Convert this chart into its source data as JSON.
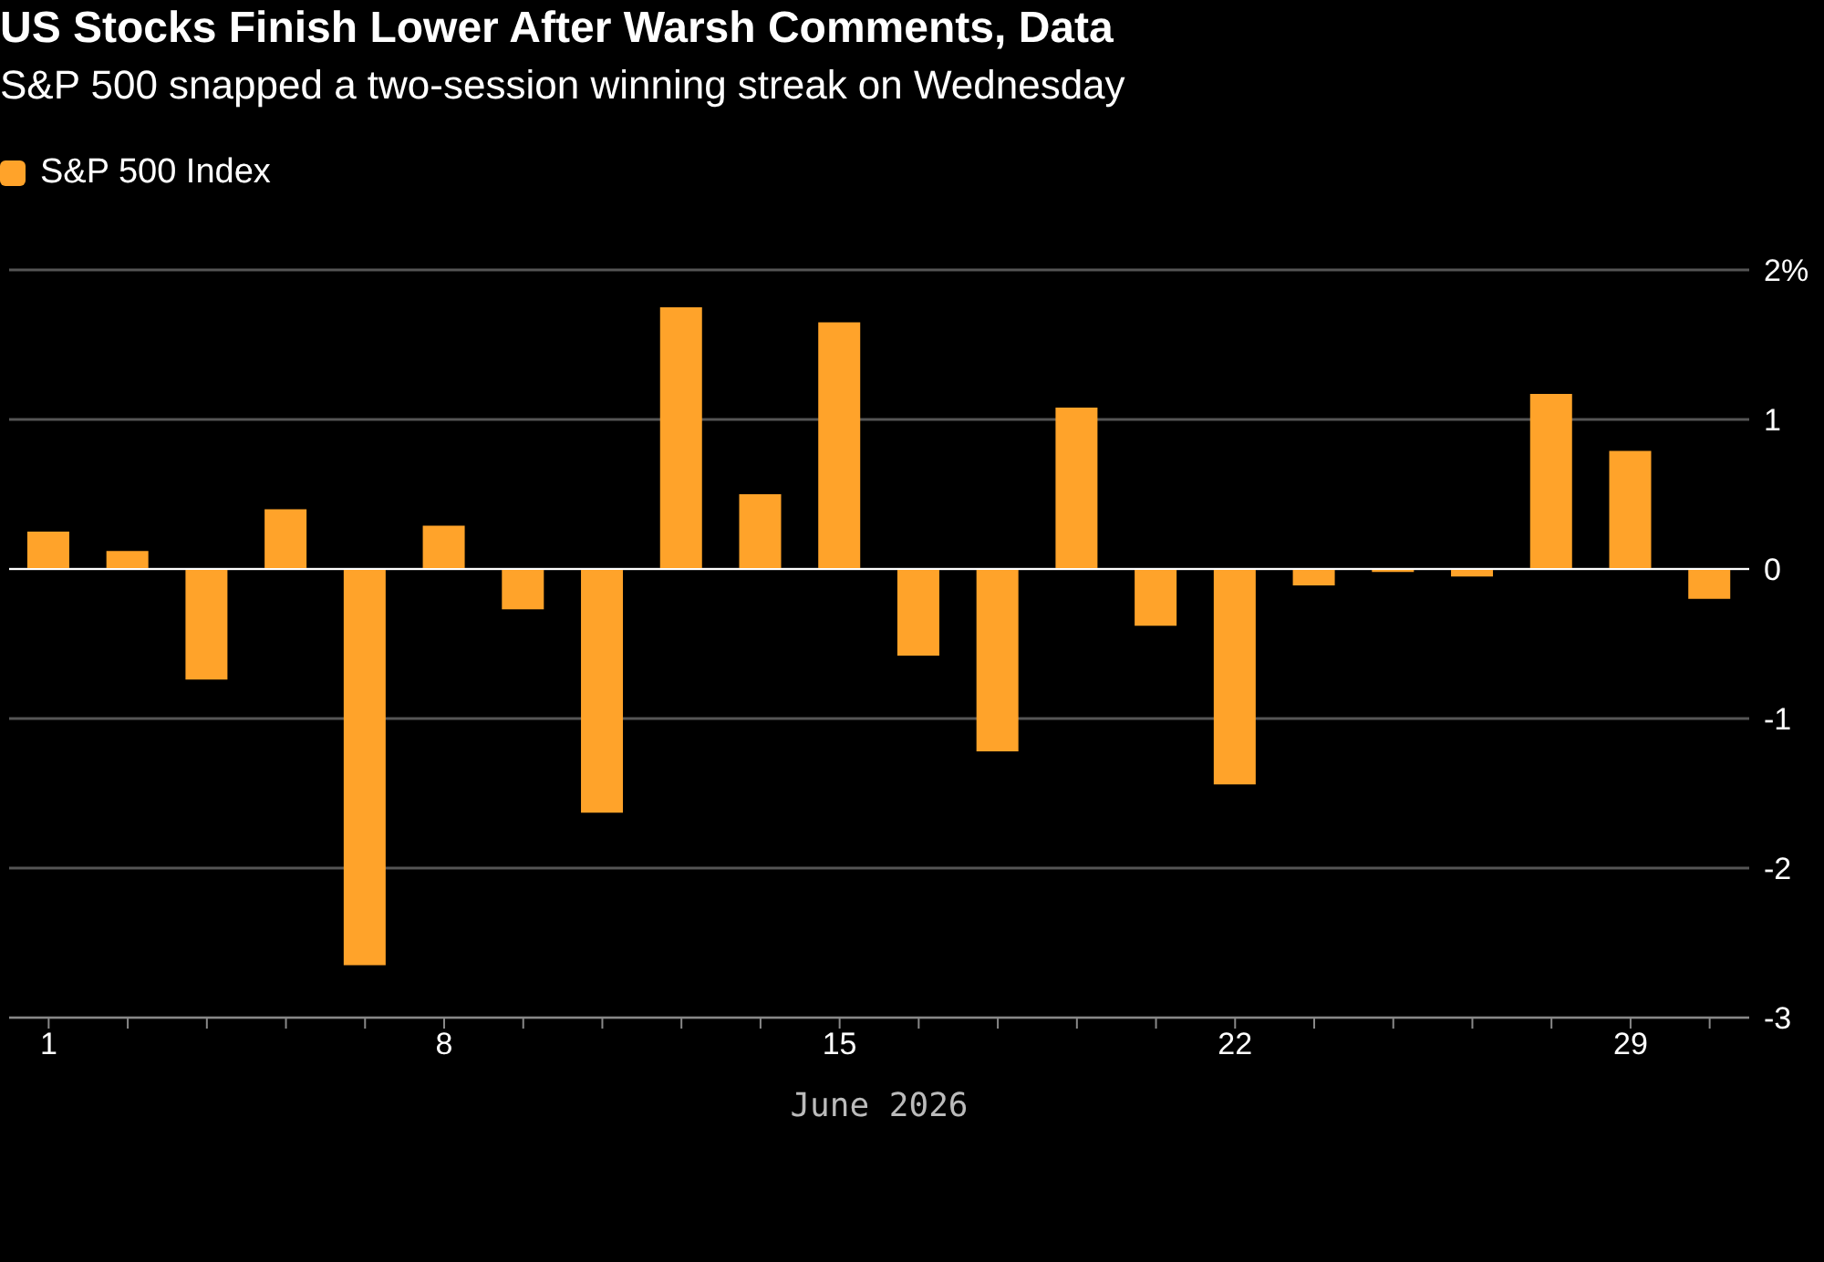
{
  "chart_data": {
    "type": "bar",
    "title": "US Stocks Finish Lower After Warsh Comments, Data",
    "subtitle": "S&P 500 snapped a two-session winning streak on Wednesday",
    "xlabel": "June 2026",
    "categories": [
      "1",
      null,
      null,
      null,
      null,
      "8",
      null,
      null,
      null,
      null,
      "15",
      null,
      null,
      null,
      null,
      "22",
      null,
      null,
      null,
      null,
      "29",
      null
    ],
    "series": [
      {
        "name": "S&P 500 Index",
        "color": "#ffa32a",
        "values": [
          0.25,
          0.12,
          -0.74,
          0.4,
          -2.65,
          0.29,
          -0.27,
          -1.63,
          1.75,
          0.5,
          1.65,
          -0.58,
          -1.22,
          1.08,
          -0.38,
          -1.44,
          -0.11,
          -0.02,
          -0.05,
          1.17,
          0.79,
          -0.2
        ]
      }
    ],
    "ylim": [
      -3,
      2
    ],
    "yticks": [
      {
        "value": 2,
        "label": "2%"
      },
      1,
      0,
      -1,
      -2,
      -3
    ],
    "grid": "y",
    "legend": "top left"
  }
}
